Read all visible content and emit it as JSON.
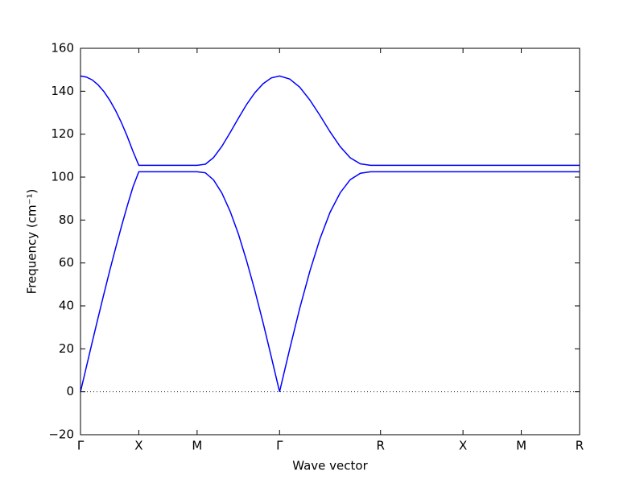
{
  "chart_data": {
    "type": "line",
    "xlabel": "Wave vector",
    "ylabel": "Frequency (cm⁻¹)",
    "x": [
      0,
      0.05,
      0.1,
      0.15,
      0.2,
      0.25,
      0.3,
      0.35,
      0.4,
      0.45,
      0.5,
      1.0,
      1.071,
      1.141,
      1.212,
      1.283,
      1.354,
      1.424,
      1.495,
      1.566,
      1.636,
      1.707,
      1.794,
      1.88,
      1.967,
      2.054,
      2.14,
      2.227,
      2.313,
      2.4,
      2.487,
      2.573,
      3.28,
      3.78,
      4.28
    ],
    "series": [
      {
        "color": "#0000ff",
        "values": [
          0,
          11.5,
          23.0,
          34.3,
          45.4,
          56.3,
          66.7,
          76.8,
          86.4,
          95.4,
          102.5,
          102.5,
          102.0,
          98.7,
          92.6,
          84.1,
          73.5,
          61.1,
          47.2,
          32.1,
          16.3,
          0,
          19.9,
          38.9,
          56.2,
          71.3,
          83.6,
          92.7,
          98.8,
          101.8,
          102.5,
          102.5,
          102.5,
          102.5,
          102.5
        ]
      },
      {
        "color": "#0000ff",
        "values": [
          147.1,
          146.6,
          145.3,
          143.0,
          139.9,
          135.9,
          131.1,
          125.5,
          119.1,
          112.0,
          105.5,
          105.5,
          106.0,
          109.1,
          114.3,
          120.7,
          127.4,
          133.8,
          139.3,
          143.5,
          146.2,
          147.1,
          145.7,
          141.9,
          135.9,
          128.7,
          121.1,
          114.2,
          109.0,
          106.2,
          105.5,
          105.5,
          105.5,
          105.5,
          105.5
        ]
      }
    ],
    "xlim": [
      0,
      4.28
    ],
    "xticks": [
      {
        "value": 0,
        "label": "Γ"
      },
      {
        "value": 0.5,
        "label": "X"
      },
      {
        "value": 1.0,
        "label": "M"
      },
      {
        "value": 1.707,
        "label": "Γ"
      },
      {
        "value": 2.573,
        "label": "R"
      },
      {
        "value": 3.28,
        "label": "X"
      },
      {
        "value": 3.78,
        "label": "M"
      },
      {
        "value": 4.28,
        "label": "R"
      }
    ],
    "ylim": [
      -20,
      160
    ],
    "yticks": [
      {
        "value": -20,
        "label": "−20"
      },
      0,
      20,
      40,
      60,
      80,
      100,
      120,
      140,
      160
    ],
    "hline": 0,
    "grid": false
  }
}
